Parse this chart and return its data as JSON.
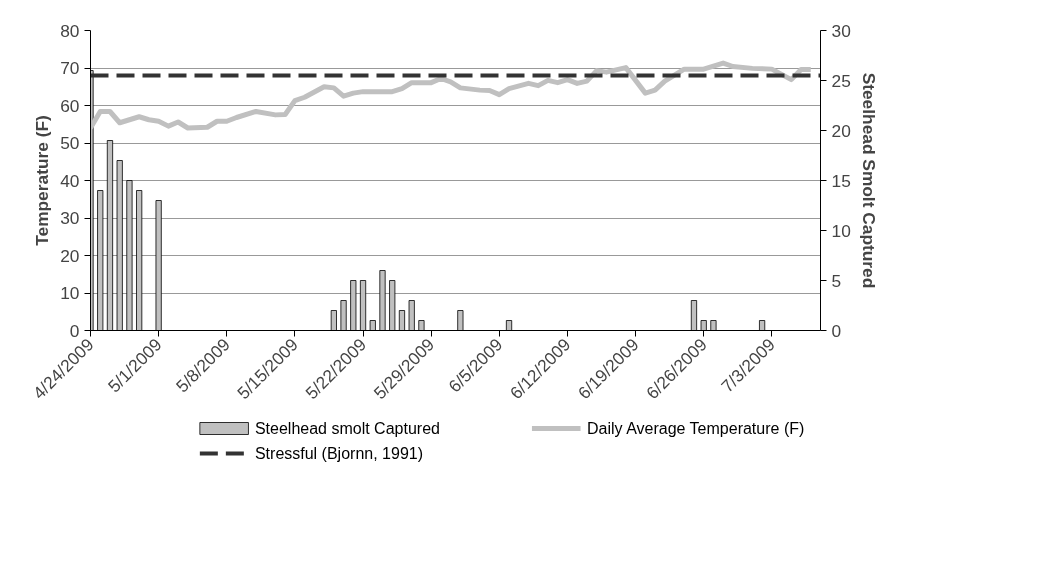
{
  "chart_data": {
    "type": "line",
    "ylabel": "Temperature (F)",
    "y2label": "Steelhead Smolt Captured",
    "xlim": [
      "2009-04-24",
      "2009-07-08"
    ],
    "xticks": [
      {
        "value": "2009-04-24",
        "label": "4/24/2009"
      },
      {
        "value": "2009-05-01",
        "label": "5/1/2009"
      },
      {
        "value": "2009-05-08",
        "label": "5/8/2009"
      },
      {
        "value": "2009-05-15",
        "label": "5/15/2009"
      },
      {
        "value": "2009-05-22",
        "label": "5/22/2009"
      },
      {
        "value": "2009-05-29",
        "label": "5/29/2009"
      },
      {
        "value": "2009-06-05",
        "label": "6/5/2009"
      },
      {
        "value": "2009-06-12",
        "label": "6/12/2009"
      },
      {
        "value": "2009-06-19",
        "label": "6/19/2009"
      },
      {
        "value": "2009-06-26",
        "label": "6/26/2009"
      },
      {
        "value": "2009-07-03",
        "label": "7/3/2009"
      }
    ],
    "ylim": [
      0,
      80
    ],
    "yticks": [
      0,
      10,
      20,
      30,
      40,
      50,
      60,
      70,
      80
    ],
    "y2lim": [
      0,
      30
    ],
    "y2ticks": [
      0,
      5,
      10,
      15,
      20,
      25,
      30
    ],
    "grid": "y",
    "legend": "bottom",
    "series": [
      {
        "name": "Steelhead smolt Captured",
        "type": "bar",
        "axis": "y2",
        "color": "#c0c0c0",
        "x": [
          "2009-04-24",
          "2009-04-25",
          "2009-04-26",
          "2009-04-27",
          "2009-04-28",
          "2009-04-29",
          "2009-05-01",
          "2009-05-19",
          "2009-05-20",
          "2009-05-21",
          "2009-05-22",
          "2009-05-23",
          "2009-05-24",
          "2009-05-25",
          "2009-05-26",
          "2009-05-27",
          "2009-05-28",
          "2009-06-01",
          "2009-06-06",
          "2009-06-25",
          "2009-06-26",
          "2009-06-27",
          "2009-07-02"
        ],
        "values": [
          26,
          14,
          19,
          17,
          15,
          14,
          13,
          2,
          3,
          5,
          5,
          1,
          6,
          5,
          2,
          3,
          1,
          2,
          1,
          3,
          1,
          1,
          1
        ]
      },
      {
        "name": "Daily Average Temperature (F)",
        "color": "#c0c0c0",
        "x": [
          "2009-04-24",
          "2009-04-25",
          "2009-04-26",
          "2009-04-27",
          "2009-04-29",
          "2009-04-30",
          "2009-05-01",
          "2009-05-02",
          "2009-05-03",
          "2009-05-04",
          "2009-05-06",
          "2009-05-07",
          "2009-05-08",
          "2009-05-09",
          "2009-05-11",
          "2009-05-13",
          "2009-05-14",
          "2009-05-15",
          "2009-05-16",
          "2009-05-18",
          "2009-05-19",
          "2009-05-20",
          "2009-05-21",
          "2009-05-22",
          "2009-05-25",
          "2009-05-26",
          "2009-05-27",
          "2009-05-29",
          "2009-05-30",
          "2009-05-31",
          "2009-06-01",
          "2009-06-03",
          "2009-06-04",
          "2009-06-05",
          "2009-06-06",
          "2009-06-08",
          "2009-06-09",
          "2009-06-10",
          "2009-06-11",
          "2009-06-12",
          "2009-06-13",
          "2009-06-14",
          "2009-06-15",
          "2009-06-16",
          "2009-06-18",
          "2009-06-20",
          "2009-06-21",
          "2009-06-22",
          "2009-06-24",
          "2009-06-26",
          "2009-06-28",
          "2009-06-29",
          "2009-07-01",
          "2009-07-03",
          "2009-07-05",
          "2009-07-06",
          "2009-07-07"
        ],
        "values": [
          54.0,
          58.4,
          58.4,
          55.4,
          57.0,
          56.2,
          55.8,
          54.5,
          55.6,
          54.0,
          54.2,
          55.8,
          55.8,
          56.8,
          58.4,
          57.5,
          57.6,
          61.3,
          62.2,
          65.0,
          64.7,
          62.5,
          63.3,
          63.7,
          63.7,
          64.5,
          66.1,
          66.1,
          67.2,
          66.3,
          64.7,
          64.1,
          64.0,
          62.9,
          64.5,
          65.9,
          65.3,
          66.7,
          66.1,
          66.9,
          65.9,
          66.5,
          69.3,
          68.9,
          70.1,
          63.3,
          64.1,
          66.5,
          69.7,
          69.7,
          71.3,
          70.4,
          69.9,
          69.7,
          66.9,
          69.6,
          69.6
        ]
      }
    ],
    "ref_lines": [
      {
        "axis": "y",
        "value": 68,
        "label": "Stressful (Bjornn, 1991)",
        "color": "#333333",
        "line_style": "dashed"
      }
    ]
  }
}
